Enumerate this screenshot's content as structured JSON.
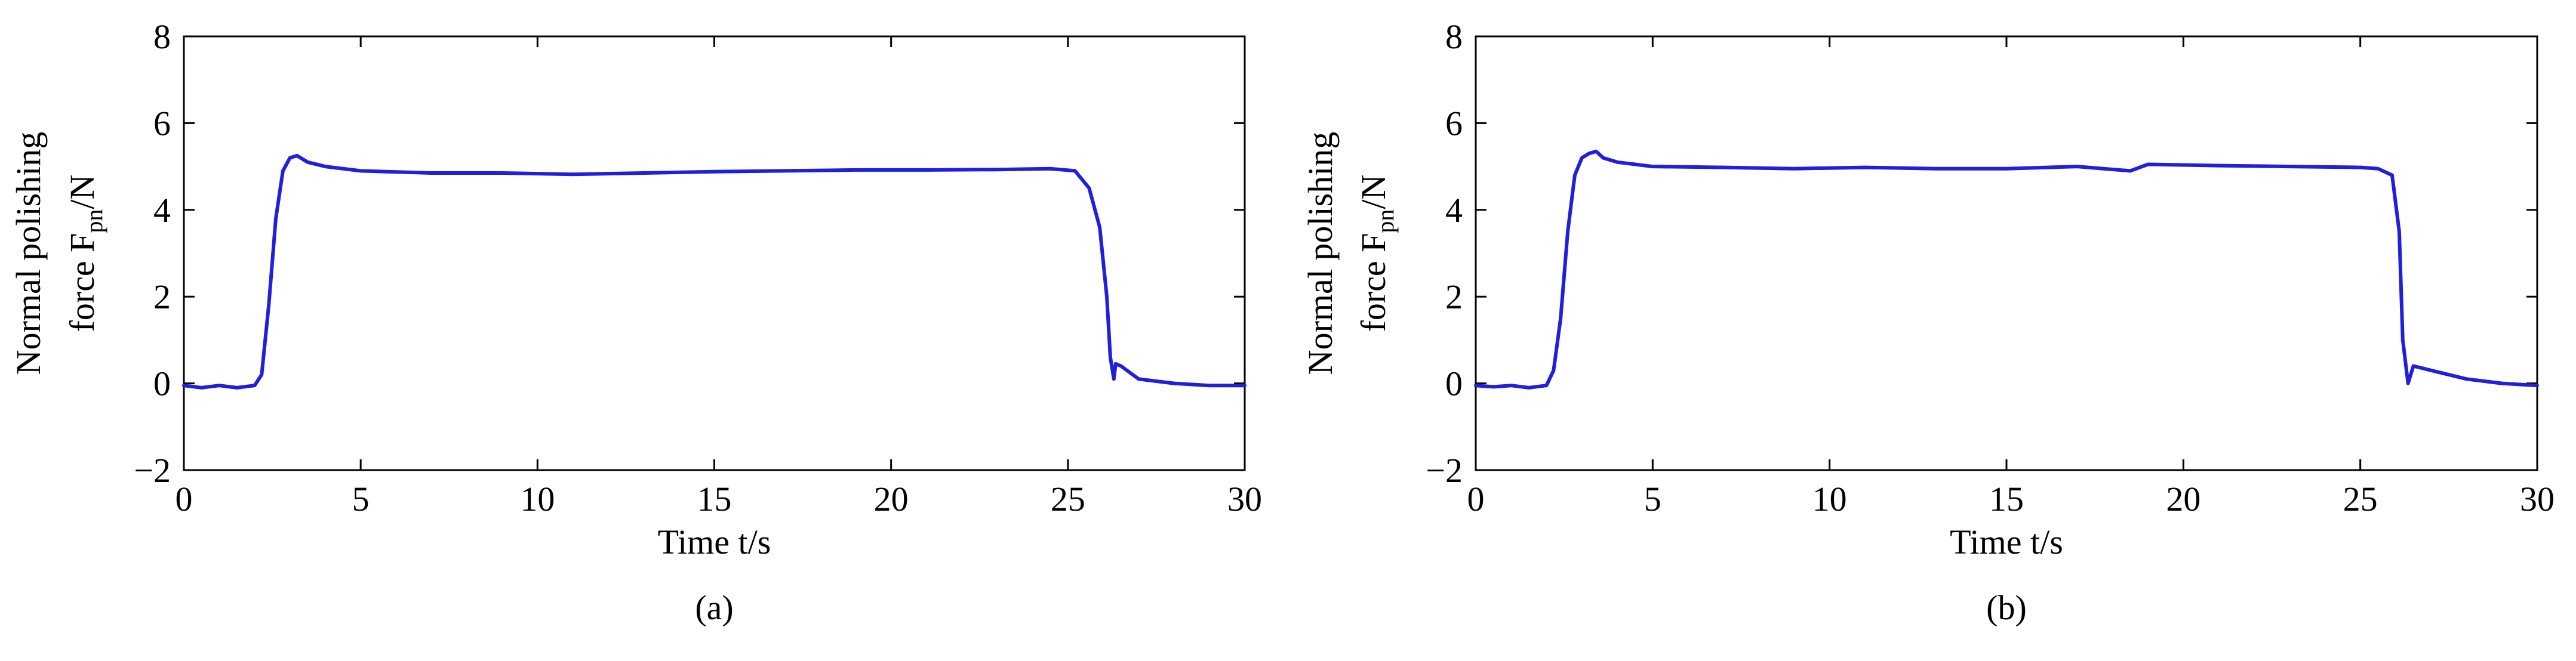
{
  "chart_data": [
    {
      "type": "line",
      "panel_label": "(a)",
      "xlabel": "Time t/s",
      "ylabel_line1": "Normal polishing",
      "ylabel_line2": {
        "prefix": "force F",
        "sub": "pn",
        "suffix": "/N"
      },
      "xlim": [
        0,
        30
      ],
      "ylim": [
        -2,
        8
      ],
      "xticks": [
        0,
        5,
        10,
        15,
        20,
        25,
        30
      ],
      "yticks": [
        -2,
        0,
        2,
        4,
        6,
        8
      ],
      "xtick_labels": [
        "0",
        "5",
        "10",
        "15",
        "20",
        "25",
        "30"
      ],
      "ytick_labels": [
        "−2",
        "0",
        "2",
        "4",
        "6",
        "8"
      ],
      "grid": false,
      "series": [
        {
          "color": "#1f1fdc",
          "x": [
            0,
            0.5,
            1.0,
            1.5,
            2.0,
            2.2,
            2.4,
            2.6,
            2.8,
            3.0,
            3.2,
            3.5,
            4.0,
            5.0,
            7.0,
            9.0,
            11.0,
            13.0,
            15.0,
            17.0,
            19.0,
            21.0,
            23.0,
            24.5,
            25.2,
            25.6,
            25.9,
            26.1,
            26.2,
            26.3,
            26.35,
            26.5,
            27.0,
            27.5,
            28.0,
            29.0,
            30.0
          ],
          "y": [
            -0.05,
            -0.1,
            -0.05,
            -0.1,
            -0.05,
            0.2,
            1.8,
            3.8,
            4.9,
            5.2,
            5.25,
            5.1,
            5.0,
            4.9,
            4.85,
            4.85,
            4.82,
            4.85,
            4.88,
            4.9,
            4.92,
            4.92,
            4.93,
            4.95,
            4.9,
            4.5,
            3.6,
            2.0,
            0.6,
            0.1,
            0.45,
            0.4,
            0.1,
            0.05,
            0.0,
            -0.05,
            -0.05
          ]
        }
      ]
    },
    {
      "type": "line",
      "panel_label": "(b)",
      "xlabel": "Time t/s",
      "ylabel_line1": "Normal polishing",
      "ylabel_line2": {
        "prefix": "force F",
        "sub": "pn",
        "suffix": "/N"
      },
      "xlim": [
        0,
        30
      ],
      "ylim": [
        -2,
        8
      ],
      "xticks": [
        0,
        5,
        10,
        15,
        20,
        25,
        30
      ],
      "yticks": [
        -2,
        0,
        2,
        4,
        6,
        8
      ],
      "xtick_labels": [
        "0",
        "5",
        "10",
        "15",
        "20",
        "25",
        "30"
      ],
      "ytick_labels": [
        "−2",
        "0",
        "2",
        "4",
        "6",
        "8"
      ],
      "grid": false,
      "series": [
        {
          "color": "#1f1fdc",
          "x": [
            0,
            0.5,
            1.0,
            1.5,
            2.0,
            2.2,
            2.4,
            2.6,
            2.8,
            3.0,
            3.2,
            3.4,
            3.6,
            4.0,
            5.0,
            7.0,
            9.0,
            11.0,
            13.0,
            15.0,
            17.0,
            18.5,
            19.0,
            21.0,
            23.0,
            25.0,
            25.5,
            25.9,
            26.1,
            26.2,
            26.35,
            26.5,
            27.0,
            28.0,
            29.0,
            30.0
          ],
          "y": [
            -0.05,
            -0.08,
            -0.05,
            -0.1,
            -0.05,
            0.3,
            1.5,
            3.5,
            4.8,
            5.2,
            5.3,
            5.35,
            5.2,
            5.1,
            5.0,
            4.98,
            4.95,
            4.98,
            4.95,
            4.95,
            5.0,
            4.9,
            5.05,
            5.02,
            5.0,
            4.98,
            4.95,
            4.8,
            3.5,
            1.0,
            0.0,
            0.4,
            0.3,
            0.1,
            0.0,
            -0.05
          ]
        }
      ]
    }
  ]
}
